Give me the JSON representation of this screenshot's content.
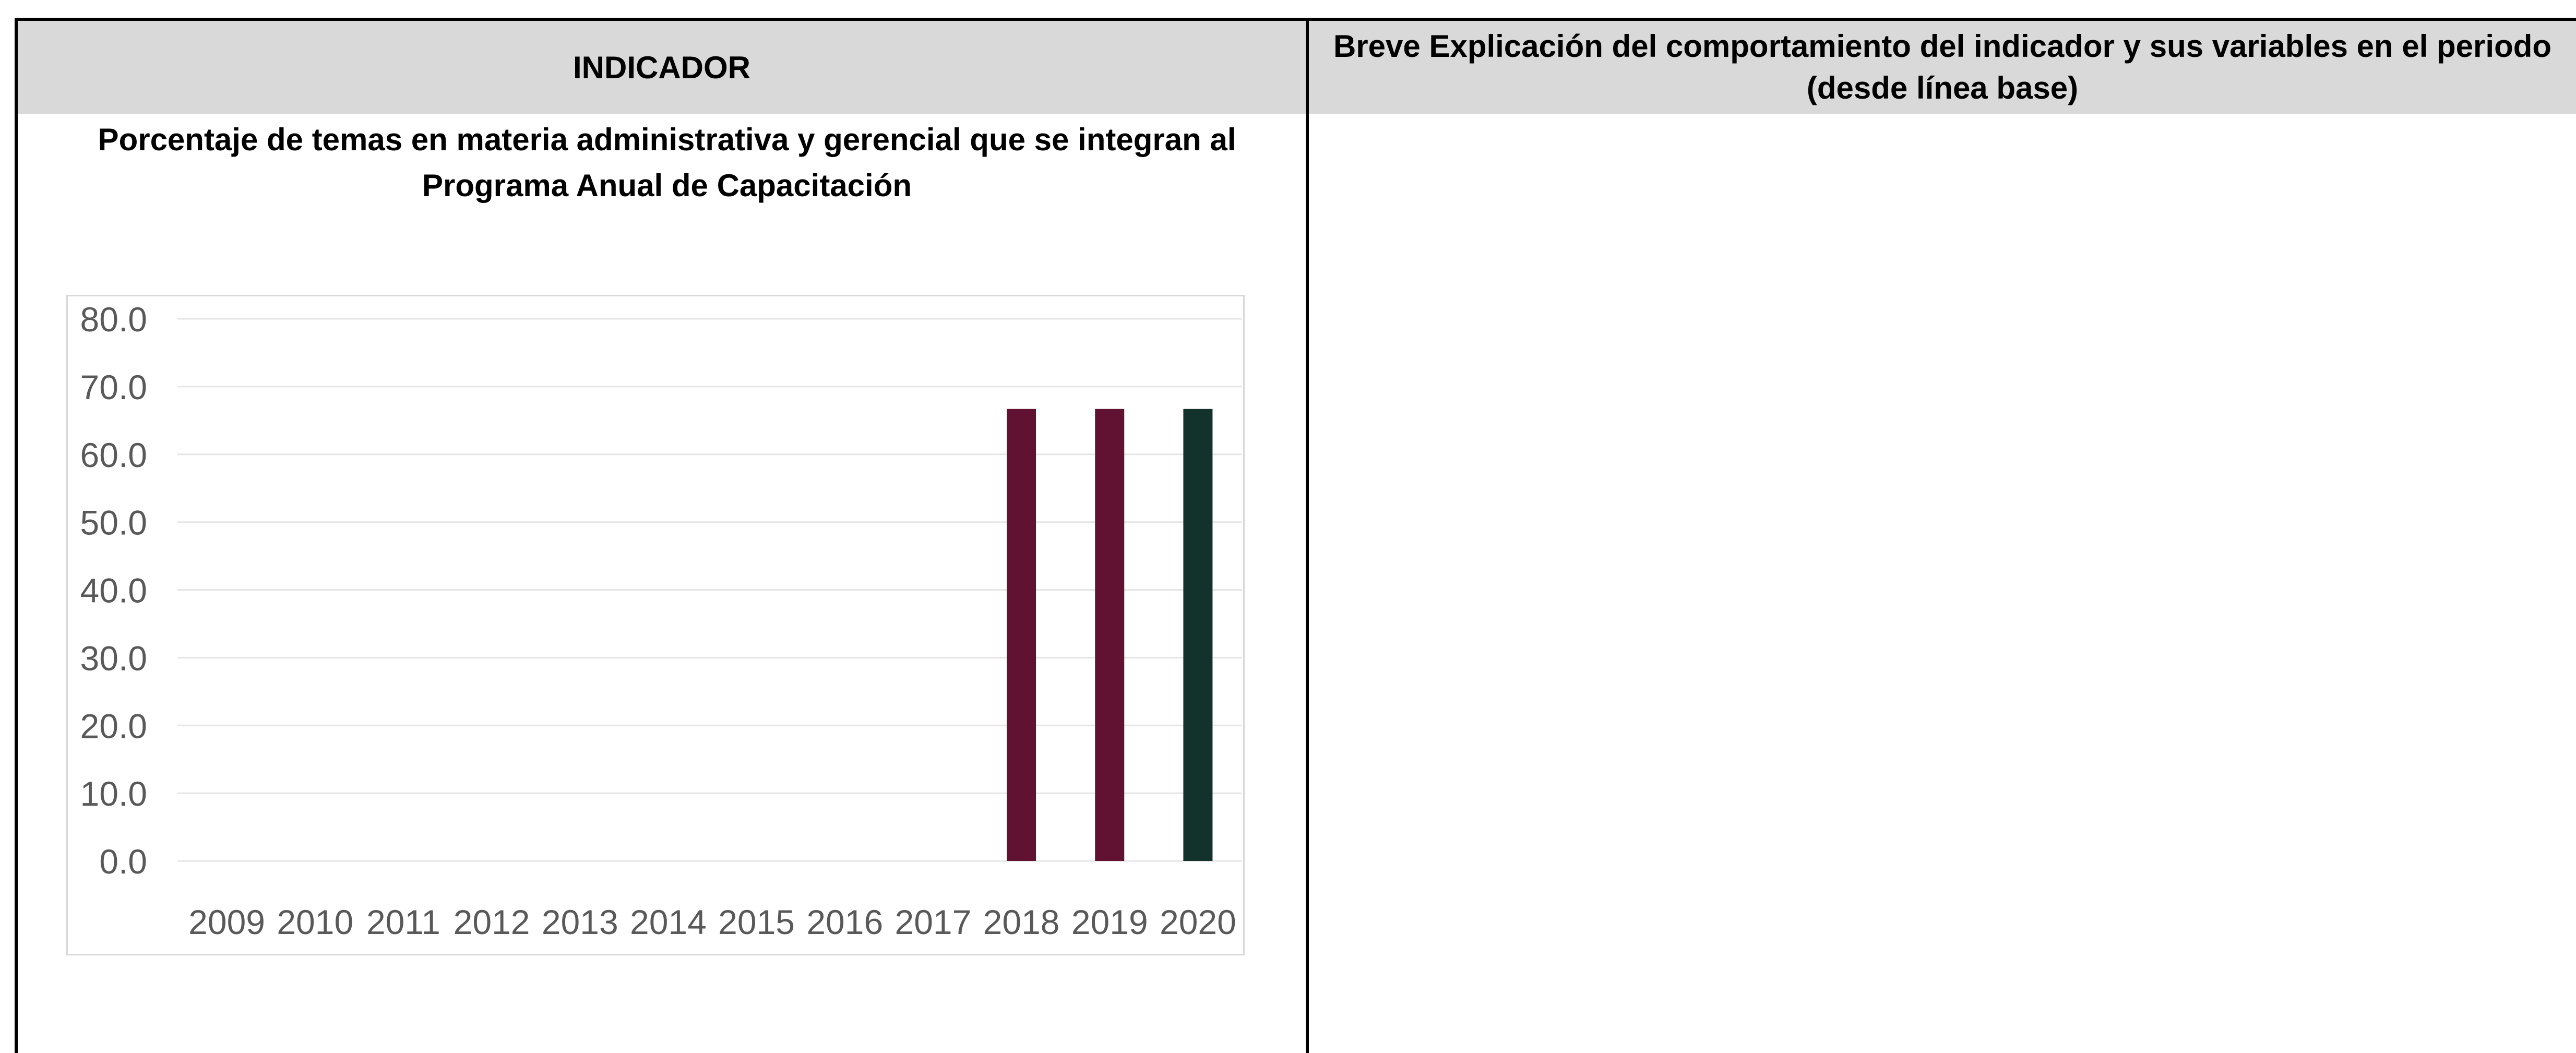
{
  "table": {
    "indicator_header": "INDICADOR",
    "explanation_header": "Breve Explicación del comportamiento del indicador y sus variables en el periodo (desde línea base)"
  },
  "chart_data": {
    "type": "bar",
    "title": "Porcentaje de temas en materia administrativa y gerencial que se integran al Programa Anual de Capacitación",
    "categories": [
      "2009",
      "2010",
      "2011",
      "2012",
      "2013",
      "2014",
      "2015",
      "2016",
      "2017",
      "2018",
      "2019",
      "2020"
    ],
    "values": [
      0,
      0,
      0,
      0,
      0,
      0,
      0,
      0,
      0,
      66.7,
      66.7,
      66.7
    ],
    "bar_colors": [
      "#611232",
      "#611232",
      "#611232",
      "#611232",
      "#611232",
      "#611232",
      "#611232",
      "#611232",
      "#611232",
      "#611232",
      "#611232",
      "#13322b"
    ],
    "y_ticks": [
      "0.0",
      "10.0",
      "20.0",
      "30.0",
      "40.0",
      "50.0",
      "60.0",
      "70.0",
      "80.0"
    ],
    "ylim": [
      0,
      80
    ],
    "grid": true,
    "legend": "none",
    "xlabel": "",
    "ylabel": ""
  }
}
